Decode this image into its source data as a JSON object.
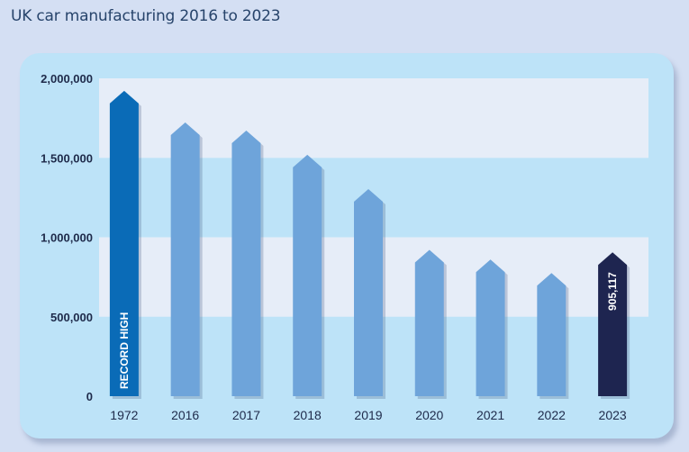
{
  "chart_data": {
    "type": "bar",
    "title": "UK car manufacturing 2016 to 2023",
    "xlabel": "",
    "ylabel": "",
    "ylim": [
      0,
      2000000
    ],
    "yticks": [
      0,
      500000,
      1000000,
      1500000,
      2000000
    ],
    "ytick_labels": [
      "0",
      "500,000",
      "1,000,000",
      "1,500,000",
      "2,000,000"
    ],
    "categories": [
      "1972",
      "2016",
      "2017",
      "2018",
      "2019",
      "2020",
      "2021",
      "2022",
      "2023"
    ],
    "values": [
      1921311,
      1722698,
      1671166,
      1519440,
      1303135,
      920928,
      859575,
      775014,
      905117
    ],
    "bar_colors": [
      "#0a6bb7",
      "#6ea4da",
      "#6ea4da",
      "#6ea4da",
      "#6ea4da",
      "#6ea4da",
      "#6ea4da",
      "#6ea4da",
      "#1e2550"
    ],
    "annotations": [
      {
        "category": "1972",
        "text": "RECORD HIGH"
      },
      {
        "category": "2023",
        "text": "905,117"
      }
    ],
    "grid": "alternating horizontal bands"
  },
  "colors": {
    "page_background": "#d4dff3",
    "panel_background": "#bde3f8",
    "band_light": "#e6edf8",
    "title": "#27446b"
  }
}
